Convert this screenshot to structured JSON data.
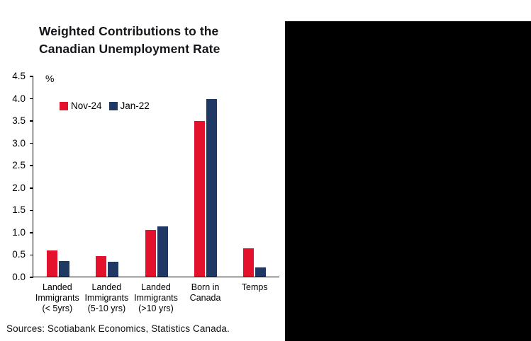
{
  "title": {
    "line1": "Weighted Contributions to the",
    "line2": "Canadian Unemployment Rate"
  },
  "chart_data": {
    "type": "bar",
    "title": "Weighted Contributions to the Canadian Unemployment Rate",
    "unit_label": "%",
    "categories": [
      [
        "Landed",
        "Immigrants",
        "(< 5yrs)"
      ],
      [
        "Landed",
        "Immigrants",
        "(5-10 yrs)"
      ],
      [
        "Landed",
        "Immigrants",
        "(>10 yrs)"
      ],
      [
        "Born in",
        "Canada"
      ],
      [
        "Temps"
      ]
    ],
    "series": [
      {
        "name": "Nov-24",
        "color": "#e4112d",
        "values": [
          0.58,
          0.46,
          1.04,
          3.49,
          0.64
        ]
      },
      {
        "name": "Jan-22",
        "color": "#1f3864",
        "values": [
          0.35,
          0.33,
          1.13,
          3.97,
          0.21
        ]
      }
    ],
    "ylim": [
      0,
      4.5
    ],
    "ytick_step": 0.5,
    "ytick_labels": [
      "0.0",
      "0.5",
      "1.0",
      "1.5",
      "2.0",
      "2.5",
      "3.0",
      "3.5",
      "4.0",
      "4.5"
    ],
    "grid": false,
    "legend_position": "top-left"
  },
  "source": "Sources: Scotiabank Economics, Statistics Canada."
}
